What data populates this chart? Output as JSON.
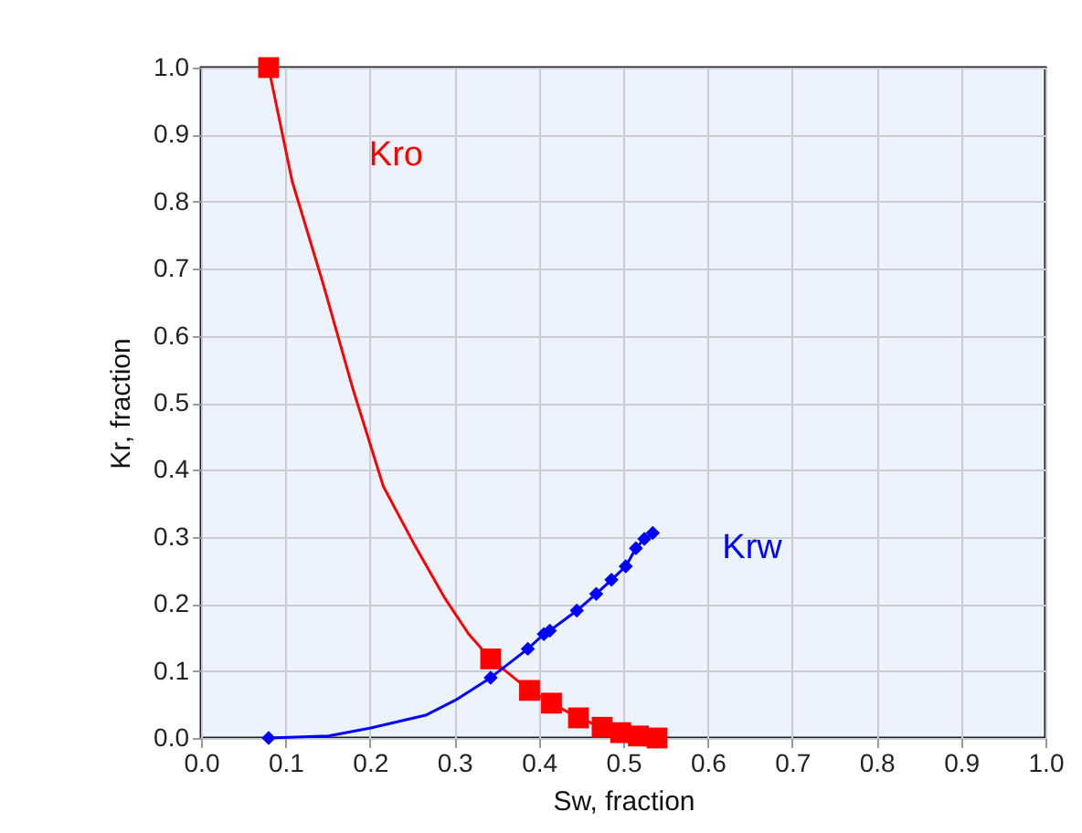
{
  "chart_data": {
    "type": "line",
    "xlabel": "Sw, fraction",
    "ylabel": "Kr, fraction",
    "xlim": [
      0,
      1
    ],
    "ylim": [
      0,
      1
    ],
    "xticks": [
      {
        "value": 0,
        "label": "0.0"
      },
      0.1,
      0.2,
      0.3,
      0.4,
      0.5,
      0.6,
      0.7,
      0.8,
      0.9,
      {
        "value": 1,
        "label": "1.0"
      }
    ],
    "yticks": [
      {
        "value": 0,
        "label": "0.0"
      },
      0.1,
      0.2,
      0.3,
      0.4,
      0.5,
      0.6,
      0.7,
      0.8,
      0.9,
      {
        "value": 1,
        "label": "1.0"
      }
    ],
    "grid": true,
    "legend": false,
    "series": [
      {
        "type": "line",
        "name": "Kro",
        "color": "#ff0000",
        "marker": "none",
        "x": [
          0.08,
          0.108,
          0.144,
          0.18,
          0.216,
          0.252,
          0.288,
          0.317,
          0.343,
          0.389,
          0.415,
          0.447,
          0.475,
          0.497,
          0.518,
          0.54
        ],
        "values": [
          1.0,
          0.83,
          0.68,
          0.52,
          0.375,
          0.29,
          0.21,
          0.155,
          0.118,
          0.071,
          0.052,
          0.03,
          0.016,
          0.008,
          0.003,
          0.0
        ]
      },
      {
        "type": "scatter",
        "color": "#ff0000",
        "marker": "square",
        "x": [
          0.08,
          0.343,
          0.389,
          0.415,
          0.447,
          0.475,
          0.497,
          0.518,
          0.54
        ],
        "values": [
          1.0,
          0.118,
          0.071,
          0.052,
          0.03,
          0.016,
          0.008,
          0.003,
          0.0
        ]
      },
      {
        "type": "line",
        "name": "Krw",
        "color": "#0000ff",
        "marker": "none",
        "x": [
          0.08,
          0.151,
          0.201,
          0.266,
          0.302,
          0.343,
          0.387,
          0.406,
          0.413,
          0.445,
          0.468,
          0.486,
          0.503,
          0.515,
          0.525,
          0.535
        ],
        "values": [
          0.0,
          0.003,
          0.015,
          0.034,
          0.057,
          0.09,
          0.133,
          0.155,
          0.16,
          0.19,
          0.215,
          0.236,
          0.256,
          0.283,
          0.297,
          0.306
        ]
      },
      {
        "type": "scatter",
        "color": "#0000ff",
        "marker": "diamond",
        "x": [
          0.08,
          0.343,
          0.387,
          0.406,
          0.413,
          0.445,
          0.468,
          0.486,
          0.503,
          0.515,
          0.525,
          0.535
        ],
        "values": [
          0.0,
          0.09,
          0.133,
          0.155,
          0.16,
          0.19,
          0.215,
          0.236,
          0.256,
          0.283,
          0.297,
          0.306
        ]
      }
    ]
  }
}
